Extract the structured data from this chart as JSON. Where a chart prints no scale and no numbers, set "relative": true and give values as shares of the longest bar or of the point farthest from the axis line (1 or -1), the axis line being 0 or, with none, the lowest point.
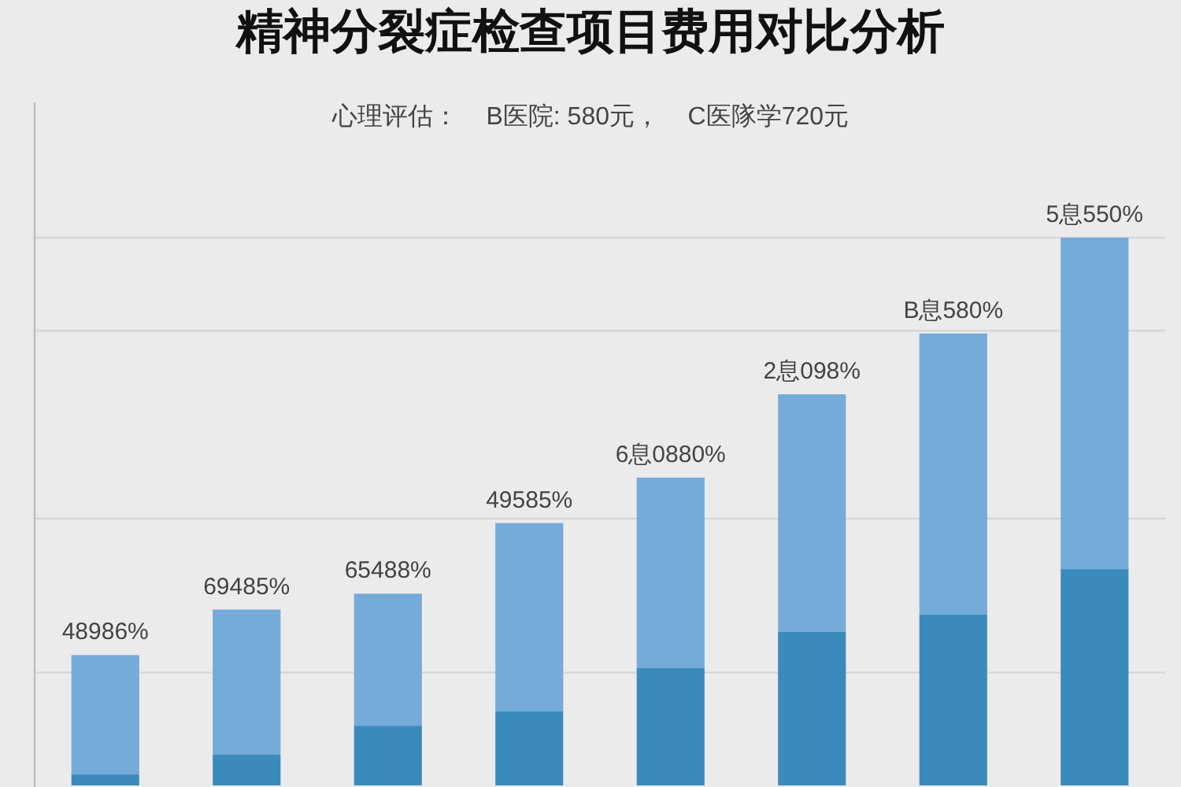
{
  "chart_data": {
    "type": "bar",
    "title": "精神分裂症检查项目费用对比分析",
    "subtitle": "心理评估：    B医院: 580元，    C医隊学720元",
    "categories": [
      null,
      null,
      null,
      null,
      null,
      null,
      null,
      null
    ],
    "stacked": true,
    "relative": true,
    "series": [
      {
        "color": "#3a8bbb",
        "values": [
          0.02,
          0.057,
          0.109,
          0.135,
          0.215,
          0.281,
          0.312,
          0.395
        ]
      },
      {
        "color": "#74abd8",
        "values": [
          0.218,
          0.264,
          0.241,
          0.344,
          0.347,
          0.433,
          0.513,
          0.605
        ]
      }
    ],
    "annotations": [
      {
        "text": "48986%",
        "y": 0.238
      },
      {
        "text": "69485%",
        "y": 0.321
      },
      {
        "text": "65488%",
        "y": 0.35
      },
      {
        "text": "49585%",
        "y": 0.479
      },
      {
        "text": "6息0880%",
        "y": 0.562
      },
      {
        "text": "2息098%",
        "y": 0.714
      },
      {
        "text": "B息580%",
        "y": 0.825
      },
      {
        "text": "5息550%",
        "y": 1.0
      }
    ],
    "ref_lines": [
      {
        "axis": "y",
        "value": 1.0,
        "color": "#d6d6d6"
      },
      {
        "axis": "y",
        "value": 0.83,
        "color": "#d6d6d6"
      },
      {
        "axis": "y",
        "value": 0.487,
        "color": "#d6d6d6"
      },
      {
        "axis": "y",
        "value": 0.206,
        "color": "#d6d6d6"
      }
    ]
  }
}
